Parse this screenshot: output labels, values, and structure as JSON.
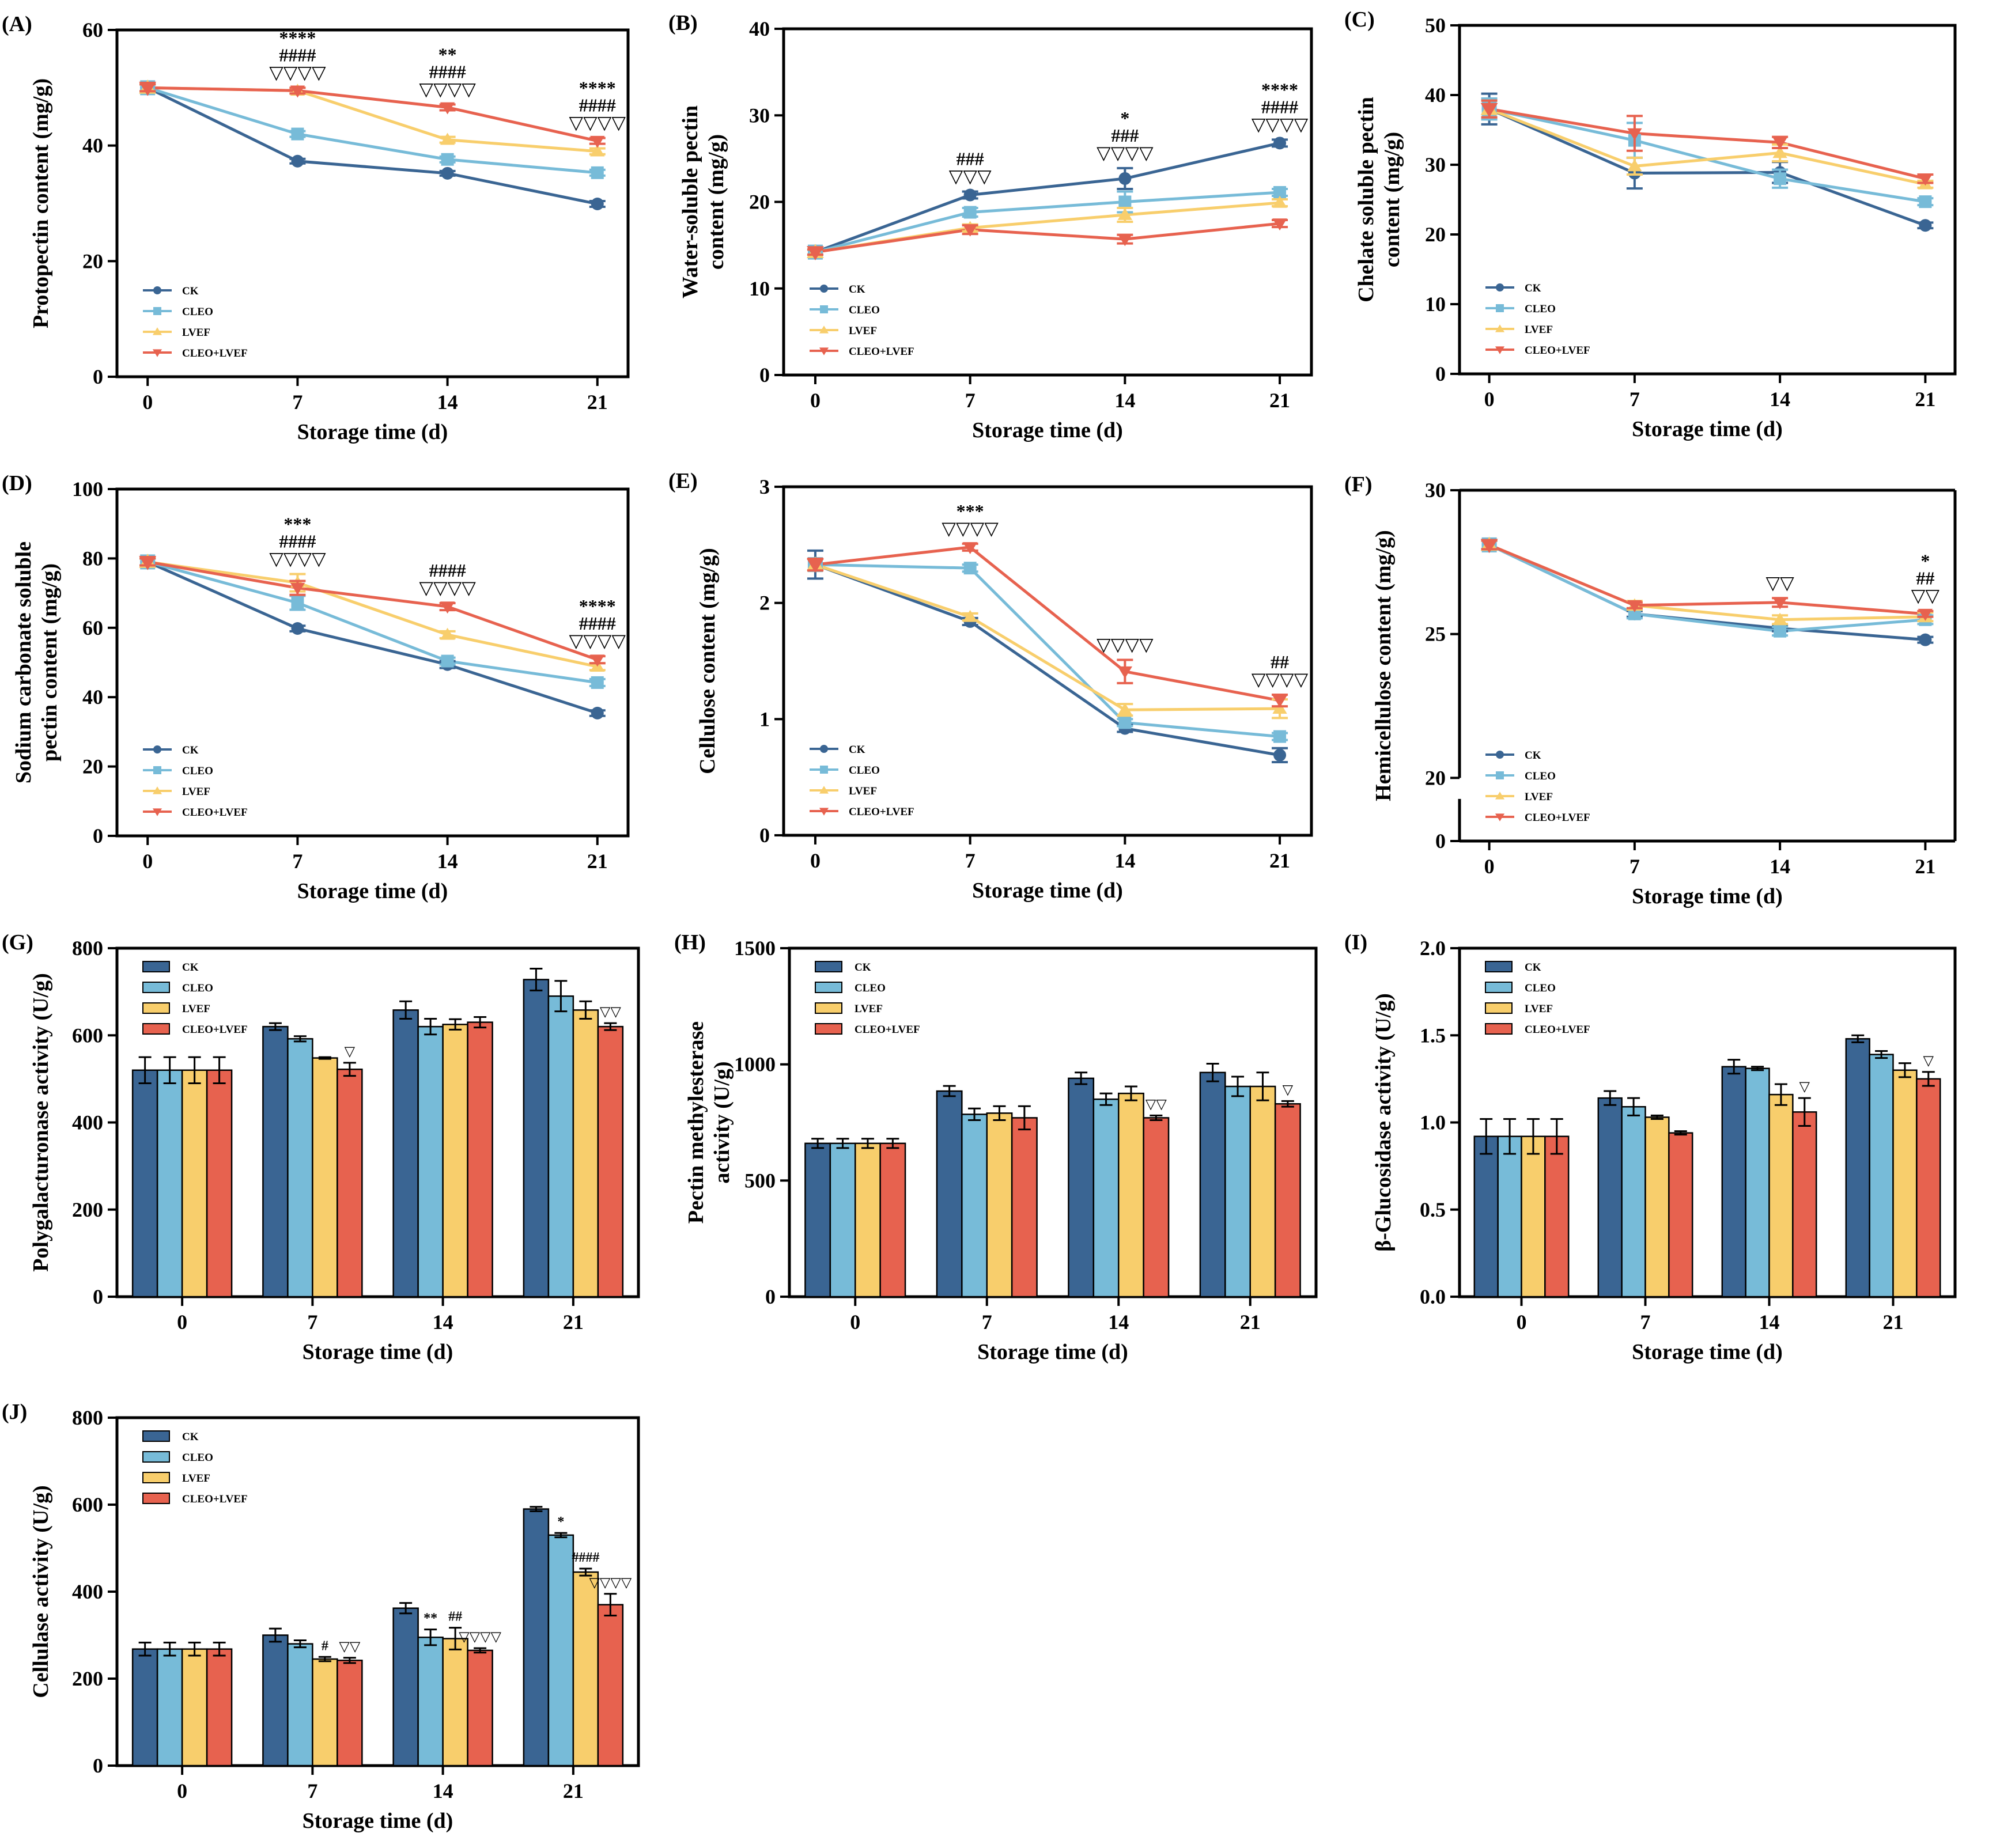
{
  "colors": {
    "CK": "#3a6593",
    "CLEO": "#77bbd8",
    "LVEF": "#f8ce6c",
    "CLEO+LVEF": "#e7624f"
  },
  "chart_data": [
    {
      "id": "A",
      "label": "(A)",
      "type": "line",
      "ylabel": [
        "Protopectin content (mg/g)"
      ],
      "xlabel": "Storage time (d)",
      "categories": [
        "0",
        "7",
        "14",
        "21"
      ],
      "ylim": [
        0,
        60
      ],
      "yticks": [
        0,
        20,
        40,
        60
      ],
      "legend": [
        "CK",
        "CLEO",
        "LVEF",
        "CLEO+LVEF"
      ],
      "legend_position": "bottom-left",
      "series": [
        {
          "name": "CK",
          "values": [
            50,
            37.3,
            35.2,
            29.9
          ],
          "errors": [
            0.6,
            0.4,
            0.4,
            0.5
          ]
        },
        {
          "name": "CLEO",
          "values": [
            50,
            42,
            37.6,
            35.3
          ],
          "errors": [
            0.6,
            0.5,
            0.5,
            0.5
          ]
        },
        {
          "name": "LVEF",
          "values": [
            50,
            49.5,
            41,
            39
          ],
          "errors": [
            0.6,
            0.5,
            0.5,
            0.5
          ]
        },
        {
          "name": "CLEO+LVEF",
          "values": [
            50,
            49.5,
            46.6,
            40.8
          ],
          "errors": [
            0.6,
            0.5,
            0.5,
            0.5
          ]
        }
      ],
      "annotations": [
        {
          "x": "7",
          "lines": [
            "****",
            "####",
            "▽▽▽▽"
          ]
        },
        {
          "x": "14",
          "lines": [
            "**",
            "####",
            "▽▽▽▽"
          ]
        },
        {
          "x": "21",
          "lines": [
            "****",
            "####",
            "▽▽▽▽"
          ]
        }
      ]
    },
    {
      "id": "B",
      "label": "(B)",
      "type": "line",
      "ylabel": [
        "Water-soluble pectin",
        "content (mg/g)"
      ],
      "xlabel": "Storage time (d)",
      "categories": [
        "0",
        "7",
        "14",
        "21"
      ],
      "ylim": [
        0,
        40
      ],
      "yticks": [
        0,
        10,
        20,
        30,
        40
      ],
      "legend": [
        "CK",
        "CLEO",
        "LVEF",
        "CLEO+LVEF"
      ],
      "legend_position": "bottom-left",
      "series": [
        {
          "name": "CK",
          "values": [
            14.2,
            20.8,
            22.7,
            26.8
          ],
          "errors": [
            0.3,
            0.4,
            1.2,
            0.4
          ]
        },
        {
          "name": "CLEO",
          "values": [
            14.2,
            18.8,
            20,
            21.1
          ],
          "errors": [
            0.3,
            0.5,
            1.2,
            0.4
          ]
        },
        {
          "name": "LVEF",
          "values": [
            14.2,
            17,
            18.5,
            19.9
          ],
          "errors": [
            0.3,
            0.4,
            0.8,
            0.4
          ]
        },
        {
          "name": "CLEO+LVEF",
          "values": [
            14.2,
            16.8,
            15.7,
            17.5
          ],
          "errors": [
            0.3,
            0.5,
            0.5,
            0.4
          ]
        }
      ],
      "annotations": [
        {
          "x": "7",
          "lines": [
            "###",
            "▽▽▽"
          ]
        },
        {
          "x": "14",
          "lines": [
            "*",
            "###",
            "▽▽▽▽"
          ]
        },
        {
          "x": "21",
          "lines": [
            "****",
            "####",
            "▽▽▽▽"
          ]
        }
      ]
    },
    {
      "id": "C",
      "label": "(C)",
      "type": "line",
      "ylabel": [
        "Chelate soluble pectin",
        "content (mg/g)"
      ],
      "xlabel": "Storage time (d)",
      "categories": [
        "0",
        "7",
        "14",
        "21"
      ],
      "ylim": [
        0,
        50
      ],
      "yticks": [
        0,
        10,
        20,
        30,
        40,
        50
      ],
      "legend": [
        "CK",
        "CLEO",
        "LVEF",
        "CLEO+LVEF"
      ],
      "legend_position": "bottom-left",
      "series": [
        {
          "name": "CK",
          "values": [
            38,
            28.8,
            28.9,
            21.3
          ],
          "errors": [
            2.2,
            2.2,
            1.5,
            0.4
          ]
        },
        {
          "name": "CLEO",
          "values": [
            38,
            33.5,
            28,
            24.7
          ],
          "errors": [
            1.5,
            2.5,
            1.3,
            0.5
          ]
        },
        {
          "name": "LVEF",
          "values": [
            38,
            29.8,
            31.7,
            27.2
          ],
          "errors": [
            1.2,
            1.2,
            1.2,
            0.5
          ]
        },
        {
          "name": "CLEO+LVEF",
          "values": [
            38,
            34.5,
            33.2,
            28
          ],
          "errors": [
            1.2,
            2.5,
            0.8,
            0.6
          ]
        }
      ],
      "annotations": []
    },
    {
      "id": "D",
      "label": "(D)",
      "type": "line",
      "ylabel": [
        "Sodium carbonate soluble",
        "pectin content (mg/g)"
      ],
      "xlabel": "Storage time (d)",
      "categories": [
        "0",
        "7",
        "14",
        "21"
      ],
      "ylim": [
        0,
        100
      ],
      "yticks": [
        0,
        20,
        40,
        60,
        80,
        100
      ],
      "legend": [
        "CK",
        "CLEO",
        "LVEF",
        "CLEO+LVEF"
      ],
      "legend_position": "bottom-left",
      "series": [
        {
          "name": "CK",
          "values": [
            79,
            59.8,
            49.4,
            35.4
          ],
          "errors": [
            1,
            0.8,
            1,
            0.8
          ]
        },
        {
          "name": "CLEO",
          "values": [
            79,
            67.2,
            50.4,
            44.2
          ],
          "errors": [
            1,
            2,
            1,
            1
          ]
        },
        {
          "name": "LVEF",
          "values": [
            79,
            73,
            58,
            48.8
          ],
          "errors": [
            1,
            2.5,
            1,
            1
          ]
        },
        {
          "name": "CLEO+LVEF",
          "values": [
            79,
            71.5,
            66.1,
            50.8
          ],
          "errors": [
            1,
            2,
            1,
            1
          ]
        }
      ],
      "annotations": [
        {
          "x": "7",
          "lines": [
            "***",
            "####",
            "▽▽▽▽"
          ]
        },
        {
          "x": "14",
          "lines": [
            "####",
            "▽▽▽▽"
          ]
        },
        {
          "x": "21",
          "lines": [
            "****",
            "####",
            "▽▽▽▽"
          ]
        }
      ]
    },
    {
      "id": "E",
      "label": "(E)",
      "type": "line",
      "ylabel": [
        "Cellulose content (mg/g)"
      ],
      "xlabel": "Storage time (d)",
      "categories": [
        "0",
        "7",
        "14",
        "21"
      ],
      "ylim": [
        0,
        3
      ],
      "yticks": [
        0,
        1,
        2,
        3
      ],
      "legend": [
        "CK",
        "CLEO",
        "LVEF",
        "CLEO+LVEF"
      ],
      "legend_position": "bottom-left",
      "series": [
        {
          "name": "CK",
          "values": [
            2.33,
            1.84,
            0.92,
            0.69
          ],
          "errors": [
            0.12,
            0.03,
            0.03,
            0.06
          ]
        },
        {
          "name": "CLEO",
          "values": [
            2.33,
            2.3,
            0.97,
            0.85
          ],
          "errors": [
            0.05,
            0.03,
            0.03,
            0.03
          ]
        },
        {
          "name": "LVEF",
          "values": [
            2.33,
            1.88,
            1.08,
            1.09
          ],
          "errors": [
            0.05,
            0.03,
            0.05,
            0.08
          ]
        },
        {
          "name": "CLEO+LVEF",
          "values": [
            2.33,
            2.48,
            1.41,
            1.16
          ],
          "errors": [
            0.05,
            0.03,
            0.1,
            0.05
          ]
        }
      ],
      "annotations": [
        {
          "x": "7",
          "lines": [
            "***",
            "▽▽▽▽"
          ]
        },
        {
          "x": "14",
          "lines": [
            "▽▽▽▽"
          ]
        },
        {
          "x": "21",
          "lines": [
            "##",
            "▽▽▽▽"
          ]
        }
      ]
    },
    {
      "id": "F",
      "label": "(F)",
      "type": "line",
      "ylabel": [
        "Hemicellulose content (mg/g)"
      ],
      "xlabel": "Storage time (d)",
      "categories": [
        "0",
        "7",
        "14",
        "21"
      ],
      "ylim": [
        0,
        30
      ],
      "yticks": [
        0,
        20,
        25,
        30
      ],
      "axis_break": [
        0,
        20
      ],
      "legend": [
        "CK",
        "CLEO",
        "LVEF",
        "CLEO+LVEF"
      ],
      "legend_position": "bottom-left",
      "series": [
        {
          "name": "CK",
          "values": [
            28.1,
            25.7,
            25.2,
            24.8
          ],
          "errors": [
            0.15,
            0.1,
            0.1,
            0.1
          ]
        },
        {
          "name": "CLEO",
          "values": [
            28.1,
            25.7,
            25.1,
            25.5
          ],
          "errors": [
            0.15,
            0.15,
            0.15,
            0.15
          ]
        },
        {
          "name": "LVEF",
          "values": [
            28.1,
            26,
            25.5,
            25.6
          ],
          "errors": [
            0.15,
            0.15,
            0.15,
            0.15
          ]
        },
        {
          "name": "CLEO+LVEF",
          "values": [
            28.1,
            26,
            26.1,
            25.7
          ],
          "errors": [
            0.15,
            0.1,
            0.15,
            0.1
          ]
        }
      ],
      "annotations": [
        {
          "x": "14",
          "lines": [
            "▽▽"
          ]
        },
        {
          "x": "21",
          "lines": [
            "*",
            "##",
            "▽▽"
          ]
        }
      ]
    },
    {
      "id": "G",
      "label": "(G)",
      "type": "bar",
      "ylabel": [
        "Polygalacturonase activity (U/g)"
      ],
      "xlabel": "Storage time (d)",
      "categories": [
        "0",
        "7",
        "14",
        "21"
      ],
      "ylim": [
        0,
        800
      ],
      "yticks": [
        0,
        200,
        400,
        600,
        800
      ],
      "legend": [
        "CK",
        "CLEO",
        "LVEF",
        "CLEO+LVEF"
      ],
      "legend_position": "top-left",
      "series": [
        {
          "name": "CK",
          "values": [
            520,
            620,
            658,
            728
          ],
          "errors": [
            30,
            8,
            20,
            25
          ]
        },
        {
          "name": "CLEO",
          "values": [
            520,
            592,
            620,
            690
          ],
          "errors": [
            30,
            6,
            18,
            35
          ]
        },
        {
          "name": "LVEF",
          "values": [
            520,
            548,
            625,
            658
          ],
          "errors": [
            30,
            2,
            12,
            20
          ]
        },
        {
          "name": "CLEO+LVEF",
          "values": [
            520,
            522,
            630,
            620
          ],
          "errors": [
            30,
            15,
            12,
            8
          ]
        }
      ],
      "bar_annotations": [
        {
          "x": "7",
          "series": "CLEO+LVEF",
          "text": "▽"
        },
        {
          "x": "21",
          "series": "CLEO+LVEF",
          "text": "▽▽"
        }
      ]
    },
    {
      "id": "H",
      "label": "(H)",
      "type": "bar",
      "ylabel": [
        "Pectin methylesterase",
        "activity (U/g)"
      ],
      "xlabel": "Storage time (d)",
      "categories": [
        "0",
        "7",
        "14",
        "21"
      ],
      "ylim": [
        0,
        1500
      ],
      "yticks": [
        0,
        500,
        1000,
        1500
      ],
      "legend": [
        "CK",
        "CLEO",
        "LVEF",
        "CLEO+LVEF"
      ],
      "legend_position": "top-left",
      "series": [
        {
          "name": "CK",
          "values": [
            660,
            885,
            940,
            965
          ],
          "errors": [
            20,
            22,
            25,
            38
          ]
        },
        {
          "name": "CLEO",
          "values": [
            660,
            785,
            850,
            905
          ],
          "errors": [
            20,
            25,
            25,
            42
          ]
        },
        {
          "name": "LVEF",
          "values": [
            660,
            790,
            875,
            905
          ],
          "errors": [
            20,
            30,
            30,
            60
          ]
        },
        {
          "name": "CLEO+LVEF",
          "values": [
            660,
            770,
            770,
            830
          ],
          "errors": [
            20,
            50,
            10,
            12
          ]
        }
      ],
      "bar_annotations": [
        {
          "x": "14",
          "series": "CLEO+LVEF",
          "text": "▽▽"
        },
        {
          "x": "21",
          "series": "CLEO+LVEF",
          "text": "▽"
        }
      ]
    },
    {
      "id": "I",
      "label": "(I)",
      "type": "bar",
      "ylabel": [
        "β-Glucosidase activity (U/g)"
      ],
      "xlabel": "Storage time (d)",
      "categories": [
        "0",
        "7",
        "14",
        "21"
      ],
      "ylim": [
        0,
        2
      ],
      "yticks": [
        "0.0",
        "0.5",
        "1.0",
        "1.5",
        "2.0"
      ],
      "legend": [
        "CK",
        "CLEO",
        "LVEF",
        "CLEO+LVEF"
      ],
      "legend_position": "top-left",
      "series": [
        {
          "name": "CK",
          "values": [
            0.92,
            1.14,
            1.32,
            1.48
          ],
          "errors": [
            0.1,
            0.04,
            0.04,
            0.02
          ]
        },
        {
          "name": "CLEO",
          "values": [
            0.92,
            1.09,
            1.31,
            1.39
          ],
          "errors": [
            0.1,
            0.05,
            0.01,
            0.02
          ]
        },
        {
          "name": "LVEF",
          "values": [
            0.92,
            1.03,
            1.16,
            1.3
          ],
          "errors": [
            0.1,
            0.01,
            0.06,
            0.04
          ]
        },
        {
          "name": "CLEO+LVEF",
          "values": [
            0.92,
            0.94,
            1.06,
            1.25
          ],
          "errors": [
            0.1,
            0.01,
            0.08,
            0.04
          ]
        }
      ],
      "bar_annotations": [
        {
          "x": "14",
          "series": "CLEO+LVEF",
          "text": "▽"
        },
        {
          "x": "21",
          "series": "CLEO+LVEF",
          "text": "▽"
        }
      ]
    },
    {
      "id": "J",
      "label": "(J)",
      "type": "bar",
      "ylabel": [
        "Cellulase activity (U/g)"
      ],
      "xlabel": "Storage time (d)",
      "categories": [
        "0",
        "7",
        "14",
        "21"
      ],
      "ylim": [
        0,
        800
      ],
      "yticks": [
        0,
        200,
        400,
        600,
        800
      ],
      "legend": [
        "CK",
        "CLEO",
        "LVEF",
        "CLEO+LVEF"
      ],
      "legend_position": "top-left",
      "series": [
        {
          "name": "CK",
          "values": [
            268,
            300,
            362,
            590
          ],
          "errors": [
            15,
            15,
            12,
            5
          ]
        },
        {
          "name": "CLEO",
          "values": [
            268,
            280,
            295,
            530
          ],
          "errors": [
            15,
            8,
            18,
            5
          ]
        },
        {
          "name": "LVEF",
          "values": [
            268,
            245,
            292,
            445
          ],
          "errors": [
            15,
            5,
            25,
            8
          ]
        },
        {
          "name": "CLEO+LVEF",
          "values": [
            268,
            242,
            265,
            370
          ],
          "errors": [
            15,
            6,
            5,
            25
          ]
        }
      ],
      "bar_annotations": [
        {
          "x": "7",
          "series": "LVEF",
          "text": "#"
        },
        {
          "x": "7",
          "series": "CLEO+LVEF",
          "text": "▽▽"
        },
        {
          "x": "14",
          "series": "CLEO",
          "text": "**"
        },
        {
          "x": "14",
          "series": "LVEF",
          "text": "##"
        },
        {
          "x": "14",
          "series": "CLEO+LVEF",
          "text": "▽▽▽▽"
        },
        {
          "x": "21",
          "series": "CLEO",
          "text": "*"
        },
        {
          "x": "21",
          "series": "LVEF",
          "text": "####"
        },
        {
          "x": "21",
          "series": "CLEO+LVEF",
          "text": "▽▽▽▽"
        }
      ]
    }
  ]
}
